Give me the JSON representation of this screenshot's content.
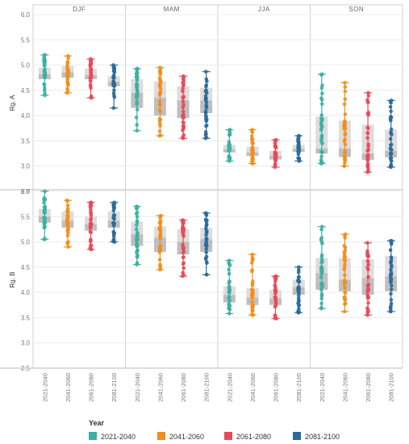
{
  "chart_data": {
    "type": "box",
    "facets": [
      "DJF",
      "MAM",
      "JJA",
      "SON"
    ],
    "rows": [
      {
        "label": "Rg. A",
        "ylim": [
          2.5,
          6.0
        ],
        "ticks": [
          "2.5",
          "3.0",
          "3.5",
          "4.0",
          "4.5",
          "5.0",
          "5.5",
          "6.0"
        ]
      },
      {
        "label": "Rg. B",
        "ylim": [
          2.5,
          6.0
        ],
        "ticks": [
          "2.5",
          "3.0",
          "3.5",
          "4.0",
          "4.5",
          "5.0",
          "5.5",
          "6.0"
        ]
      }
    ],
    "categories": [
      "2021-2040",
      "2041-2060",
      "2061-2080",
      "2081-2100"
    ],
    "legend": {
      "title": "Year",
      "items": [
        {
          "label": "2021-2040",
          "color": "#3bb0a3"
        },
        {
          "label": "2041-2060",
          "color": "#f28e1c"
        },
        {
          "label": "2061-2080",
          "color": "#e8495a"
        },
        {
          "label": "2081-2100",
          "color": "#2b6a9a"
        }
      ]
    },
    "boxes": {
      "Rg. A": {
        "DJF": [
          {
            "min": 4.4,
            "q1": 4.72,
            "median": 4.82,
            "q3": 4.95,
            "max": 5.2
          },
          {
            "min": 4.45,
            "q1": 4.75,
            "median": 4.86,
            "q3": 4.98,
            "max": 5.18
          },
          {
            "min": 4.35,
            "q1": 4.72,
            "median": 4.8,
            "q3": 4.93,
            "max": 5.12
          },
          {
            "min": 4.15,
            "q1": 4.58,
            "median": 4.67,
            "q3": 4.78,
            "max": 5.0
          }
        ],
        "MAM": [
          {
            "min": 3.7,
            "q1": 4.15,
            "median": 4.45,
            "q3": 4.72,
            "max": 4.93
          },
          {
            "min": 3.6,
            "q1": 4.0,
            "median": 4.35,
            "q3": 4.68,
            "max": 4.95
          },
          {
            "min": 3.55,
            "q1": 3.95,
            "median": 4.3,
            "q3": 4.58,
            "max": 4.78
          },
          {
            "min": 3.55,
            "q1": 4.05,
            "median": 4.3,
            "q3": 4.55,
            "max": 4.87
          }
        ],
        "JJA": [
          {
            "min": 3.1,
            "q1": 3.27,
            "median": 3.33,
            "q3": 3.42,
            "max": 3.72
          },
          {
            "min": 3.05,
            "q1": 3.2,
            "median": 3.27,
            "q3": 3.38,
            "max": 3.72
          },
          {
            "min": 2.98,
            "q1": 3.13,
            "median": 3.2,
            "q3": 3.3,
            "max": 3.52
          },
          {
            "min": 3.1,
            "q1": 3.28,
            "median": 3.34,
            "q3": 3.42,
            "max": 3.6
          }
        ],
        "SON": [
          {
            "min": 3.05,
            "q1": 3.25,
            "median": 3.35,
            "q3": 3.98,
            "max": 4.82
          },
          {
            "min": 3.0,
            "q1": 3.18,
            "median": 3.35,
            "q3": 3.9,
            "max": 4.65
          },
          {
            "min": 2.88,
            "q1": 3.12,
            "median": 3.25,
            "q3": 3.82,
            "max": 4.45
          },
          {
            "min": 2.98,
            "q1": 3.17,
            "median": 3.3,
            "q3": 3.72,
            "max": 4.3
          }
        ]
      },
      "Rg. B": {
        "DJF": [
          {
            "min": 5.05,
            "q1": 5.38,
            "median": 5.5,
            "q3": 5.65,
            "max": 6.0
          },
          {
            "min": 4.9,
            "q1": 5.28,
            "median": 5.42,
            "q3": 5.6,
            "max": 5.82
          },
          {
            "min": 4.85,
            "q1": 5.22,
            "median": 5.35,
            "q3": 5.5,
            "max": 5.78
          },
          {
            "min": 5.0,
            "q1": 5.28,
            "median": 5.42,
            "q3": 5.6,
            "max": 5.78
          }
        ],
        "MAM": [
          {
            "min": 4.55,
            "q1": 4.92,
            "median": 5.15,
            "q3": 5.4,
            "max": 5.7
          },
          {
            "min": 4.45,
            "q1": 4.8,
            "median": 5.08,
            "q3": 5.3,
            "max": 5.52
          },
          {
            "min": 4.32,
            "q1": 4.75,
            "median": 5.0,
            "q3": 5.25,
            "max": 5.43
          },
          {
            "min": 4.35,
            "q1": 4.8,
            "median": 5.05,
            "q3": 5.28,
            "max": 5.57
          }
        ],
        "JJA": [
          {
            "min": 3.58,
            "q1": 3.8,
            "median": 3.95,
            "q3": 4.12,
            "max": 4.63
          },
          {
            "min": 3.55,
            "q1": 3.75,
            "median": 3.9,
            "q3": 4.08,
            "max": 4.75
          },
          {
            "min": 3.48,
            "q1": 3.75,
            "median": 3.88,
            "q3": 4.05,
            "max": 4.32
          },
          {
            "min": 3.6,
            "q1": 3.95,
            "median": 4.1,
            "q3": 4.25,
            "max": 4.5
          }
        ],
        "SON": [
          {
            "min": 3.68,
            "q1": 4.05,
            "median": 4.38,
            "q3": 4.68,
            "max": 5.3
          },
          {
            "min": 3.62,
            "q1": 4.02,
            "median": 4.25,
            "q3": 4.68,
            "max": 5.15
          },
          {
            "min": 3.55,
            "q1": 3.95,
            "median": 4.28,
            "q3": 4.65,
            "max": 4.98
          },
          {
            "min": 3.62,
            "q1": 4.02,
            "median": 4.32,
            "q3": 4.72,
            "max": 5.02
          }
        ]
      }
    }
  }
}
